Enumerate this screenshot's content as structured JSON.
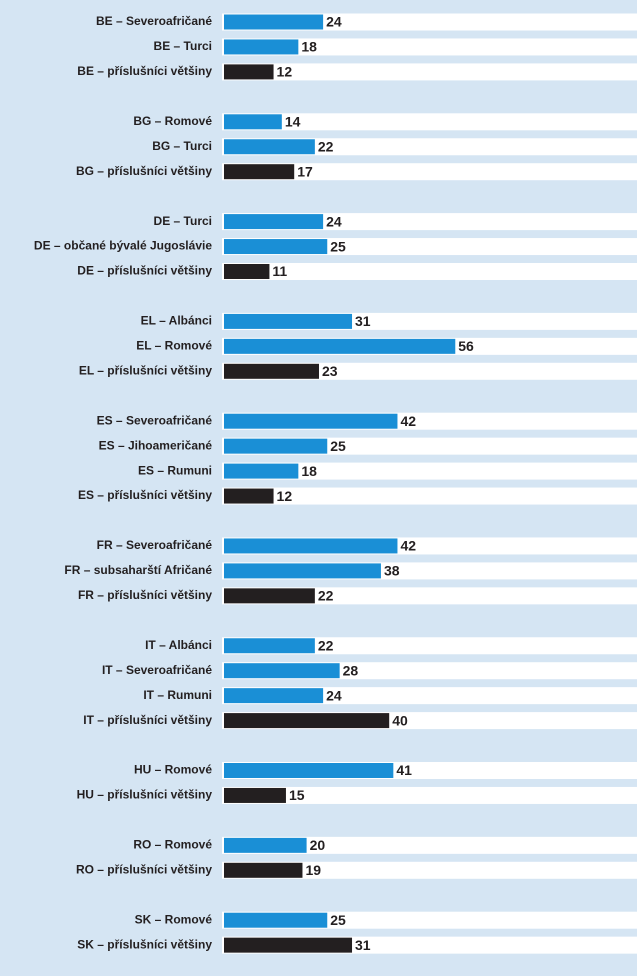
{
  "chart_data": {
    "type": "bar",
    "orientation": "horizontal",
    "categories": [
      "BE – Severoafričané",
      "BE – Turci",
      "BE – příslušníci většiny",
      null,
      "BG – Romové",
      "BG – Turci",
      "BG – příslušníci většiny",
      null,
      "DE – Turci",
      "DE – občané bývalé Jugoslávie",
      "DE – příslušníci většiny",
      null,
      "EL – Albánci",
      "EL – Romové",
      "EL – příslušníci většiny",
      null,
      "ES – Severoafričané",
      "ES – Jihoameričané",
      "ES – Rumuni",
      "ES – příslušníci většiny",
      null,
      "FR – Severoafričané",
      "FR – subsaharští Afričané",
      "FR – příslušníci většiny",
      null,
      "IT – Albánci",
      "IT – Severoafričané",
      "IT – Rumuni",
      "IT – příslušníci většiny",
      null,
      "HU – Romové",
      "HU – příslušníci většiny",
      null,
      "RO – Romové",
      "RO – příslušníci většiny",
      null,
      "SK – Romové",
      "SK – příslušníci většiny"
    ],
    "values": [
      24,
      18,
      12,
      null,
      14,
      22,
      17,
      null,
      24,
      25,
      11,
      null,
      31,
      56,
      23,
      null,
      42,
      25,
      18,
      12,
      null,
      42,
      38,
      22,
      null,
      22,
      28,
      24,
      40,
      null,
      41,
      15,
      null,
      20,
      19,
      null,
      25,
      31
    ],
    "colors": [
      "#1a8fd6",
      "#1a8fd6",
      "#231f20",
      null,
      "#1a8fd6",
      "#1a8fd6",
      "#231f20",
      null,
      "#1a8fd6",
      "#1a8fd6",
      "#231f20",
      null,
      "#1a8fd6",
      "#1a8fd6",
      "#231f20",
      null,
      "#1a8fd6",
      "#1a8fd6",
      "#1a8fd6",
      "#231f20",
      null,
      "#1a8fd6",
      "#1a8fd6",
      "#231f20",
      null,
      "#1a8fd6",
      "#1a8fd6",
      "#1a8fd6",
      "#231f20",
      null,
      "#1a8fd6",
      "#231f20",
      null,
      "#1a8fd6",
      "#231f20",
      null,
      "#1a8fd6",
      "#231f20"
    ],
    "xlim": [
      0,
      100
    ]
  }
}
